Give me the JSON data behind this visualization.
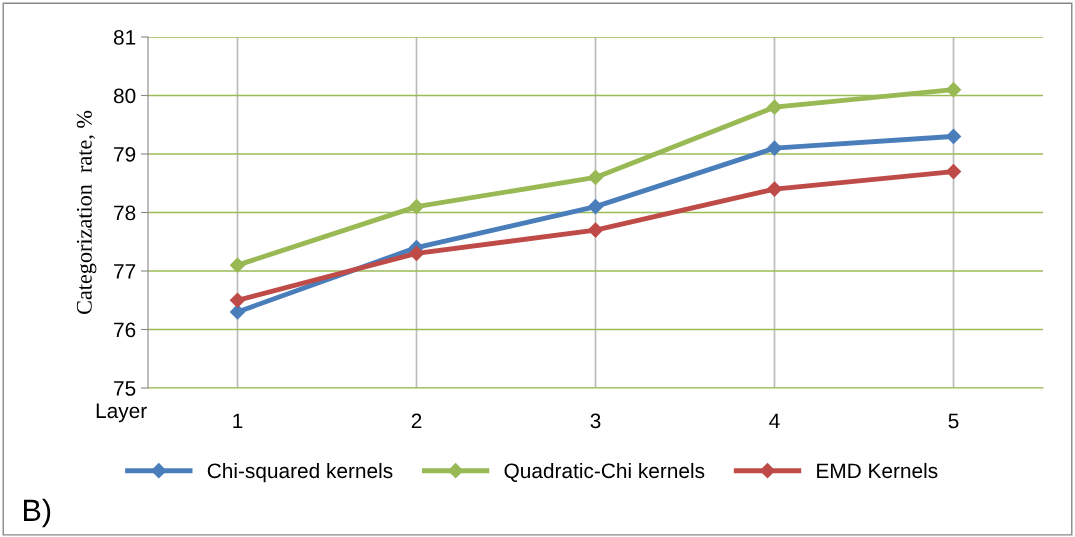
{
  "chart_data": {
    "type": "line",
    "ylabel": "Categorization  rate, %",
    "xlabel": "Layer",
    "categories": [
      "1",
      "2",
      "3",
      "4",
      "5"
    ],
    "series": [
      {
        "name": "Chi-squared kernels",
        "color": "#4a7ebb",
        "values": [
          76.3,
          77.4,
          78.1,
          79.1,
          79.3
        ]
      },
      {
        "name": "Quadratic-Chi kernels",
        "color": "#98b954",
        "values": [
          77.1,
          78.1,
          78.6,
          79.8,
          80.1
        ]
      },
      {
        "name": "EMD Kernels",
        "color": "#be4b48",
        "values": [
          76.5,
          77.3,
          77.7,
          78.4,
          78.7
        ]
      }
    ],
    "ylim": [
      75,
      81
    ],
    "yticks": [
      75,
      76,
      77,
      78,
      79,
      80,
      81
    ],
    "grid": true,
    "legend": "bottom",
    "marker": "diamond",
    "annotations": [
      "B)"
    ]
  }
}
